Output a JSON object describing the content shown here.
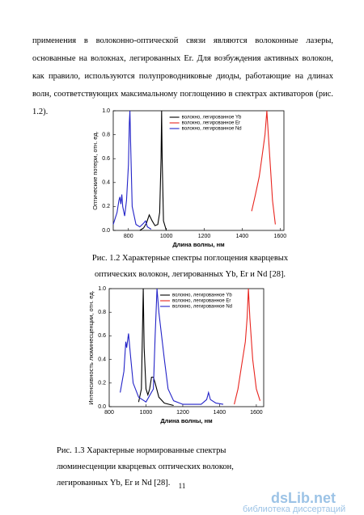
{
  "paragraph": "применения в волоконно-оптической связи являются волоконные лазеры, основанные на волокнах, легированных Er. Для возбуждения активных волокон, как правило, используются полупроводниковые диоды, работающие на длинах волн, соответствующих максимальному поглощению в спектрах активаторов (рис. 1.2).",
  "chart_data": [
    {
      "type": "line",
      "x_label": "Длина волны, нм",
      "y_label": "Оптические потери, отн. ед.",
      "xlim": [
        720,
        1620
      ],
      "xticks": [
        800,
        1000,
        1200,
        1400,
        1600
      ],
      "ylim": [
        0,
        1
      ],
      "yticks": [
        {
          "value": 0,
          "label": "0.0"
        },
        {
          "value": 0.2,
          "label": "0.2"
        },
        {
          "value": 0.4,
          "label": "0.4"
        },
        {
          "value": 0.6,
          "label": "0.6"
        },
        {
          "value": 0.8,
          "label": "0.8"
        },
        {
          "value": 1,
          "label": "1.0"
        }
      ],
      "legend": "upper right",
      "series": [
        {
          "name": "волокно, легированное Yb",
          "color": "#000000",
          "x": [
            860,
            880,
            895,
            910,
            925,
            940,
            955,
            965,
            972,
            975,
            978,
            985,
            1000
          ],
          "values": [
            0.0,
            0.02,
            0.06,
            0.13,
            0.08,
            0.04,
            0.05,
            0.15,
            0.6,
            1.0,
            0.6,
            0.08,
            0.0
          ]
        },
        {
          "name": "волокно, легированное Er",
          "color": "#e8251f",
          "x": [
            1450,
            1470,
            1490,
            1505,
            1520,
            1530,
            1540,
            1550,
            1560,
            1575
          ],
          "values": [
            0.16,
            0.3,
            0.45,
            0.62,
            0.8,
            1.0,
            0.75,
            0.5,
            0.25,
            0.05
          ]
        },
        {
          "name": "волокно, легированное Nd",
          "color": "#2323c8",
          "x": [
            720,
            740,
            750,
            755,
            760,
            765,
            770,
            780,
            790,
            800,
            805,
            808,
            812,
            820,
            840,
            860,
            880,
            890,
            900,
            920
          ],
          "values": [
            0.05,
            0.15,
            0.25,
            0.28,
            0.22,
            0.3,
            0.2,
            0.12,
            0.25,
            0.55,
            0.9,
            1.0,
            0.7,
            0.2,
            0.05,
            0.03,
            0.06,
            0.08,
            0.03,
            0.01
          ]
        }
      ]
    },
    {
      "type": "line",
      "x_label": "Длина волны, нм",
      "y_label": "Интенсивность люминесценции, отн. ед.",
      "xlim": [
        800,
        1640
      ],
      "xticks": [
        800,
        1000,
        1200,
        1400,
        1600
      ],
      "ylim": [
        0,
        1
      ],
      "yticks": [
        {
          "value": 0,
          "label": "0.0"
        },
        {
          "value": 0.2,
          "label": "0.2"
        },
        {
          "value": 0.4,
          "label": "0.4"
        },
        {
          "value": 0.6,
          "label": "0.6"
        },
        {
          "value": 0.8,
          "label": "0.8"
        },
        {
          "value": 1,
          "label": "1.0"
        }
      ],
      "legend": "upper right",
      "series": [
        {
          "name": "волокно, легированное Yb",
          "color": "#000000",
          "x": [
            960,
            975,
            985,
            990,
            1000,
            1010,
            1020,
            1030,
            1040,
            1050,
            1070,
            1100,
            1150
          ],
          "values": [
            0.04,
            0.15,
            1.0,
            0.5,
            0.15,
            0.1,
            0.15,
            0.25,
            0.25,
            0.2,
            0.08,
            0.03,
            0.01
          ]
        },
        {
          "name": "волокно, легированное Er",
          "color": "#e8251f",
          "x": [
            1480,
            1500,
            1520,
            1540,
            1550,
            1557,
            1565,
            1580,
            1600,
            1620
          ],
          "values": [
            0.02,
            0.15,
            0.35,
            0.55,
            0.75,
            1.0,
            0.75,
            0.4,
            0.15,
            0.05
          ]
        },
        {
          "name": "волокно, легированное Nd",
          "color": "#2323c8",
          "x": [
            860,
            880,
            890,
            895,
            905,
            915,
            930,
            960,
            1000,
            1040,
            1050,
            1060,
            1070,
            1085,
            1100,
            1120,
            1150,
            1200,
            1300,
            1330,
            1340,
            1350,
            1380,
            1420
          ],
          "values": [
            0.12,
            0.3,
            0.55,
            0.5,
            0.62,
            0.45,
            0.2,
            0.08,
            0.04,
            0.15,
            0.6,
            1.0,
            0.8,
            0.6,
            0.4,
            0.15,
            0.05,
            0.02,
            0.02,
            0.06,
            0.12,
            0.06,
            0.03,
            0.02
          ]
        }
      ]
    }
  ],
  "captions": [
    "Рис. 1.2 Характерные спектры поглощения кварцевых оптических волокон, легированных Yb, Er и Nd [28].",
    "Рис. 1.3 Характерные нормированные спектры люминесценции кварцевых оптических волокон, легированных Yb, Er и Nd [28]."
  ],
  "page_number": "11",
  "watermark": {
    "logo": "dsLib.net",
    "tagline": "библиотека диссертаций"
  }
}
